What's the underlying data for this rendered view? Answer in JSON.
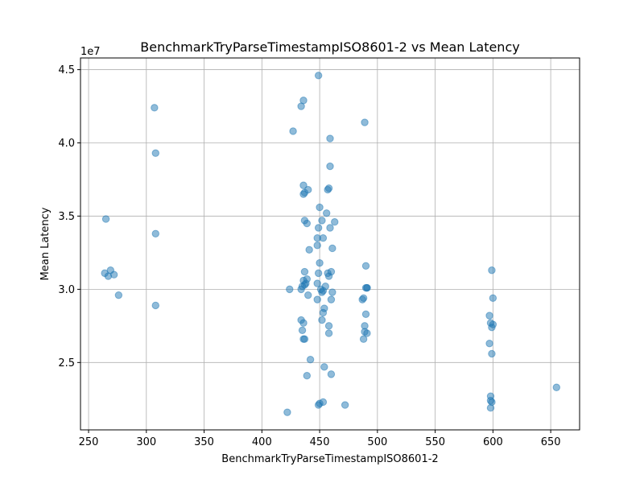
{
  "chart_data": {
    "type": "scatter",
    "title": "BenchmarkTryParseTimestampISO8601-2 vs Mean Latency",
    "xlabel": "BenchmarkTryParseTimestampISO8601-2",
    "ylabel": "Mean Latency",
    "y_offset_label": "1e7",
    "y_scale": 10000000,
    "grid": true,
    "xlim": [
      243,
      675
    ],
    "ylim": [
      20400000,
      45800000
    ],
    "x_ticks": [
      250,
      300,
      350,
      400,
      450,
      500,
      550,
      600,
      650
    ],
    "x_tick_labels": [
      "250",
      "300",
      "350",
      "400",
      "450",
      "500",
      "550",
      "600",
      "650"
    ],
    "y_ticks": [
      25000000,
      30000000,
      35000000,
      40000000,
      45000000
    ],
    "y_tick_labels": [
      "2.5",
      "3.0",
      "3.5",
      "4.0",
      "4.5"
    ],
    "points": [
      {
        "x": 264,
        "y": 31100000
      },
      {
        "x": 265,
        "y": 34800000
      },
      {
        "x": 267,
        "y": 30900000
      },
      {
        "x": 269,
        "y": 31300000
      },
      {
        "x": 272,
        "y": 31000000
      },
      {
        "x": 276,
        "y": 29600000
      },
      {
        "x": 307,
        "y": 42400000
      },
      {
        "x": 308,
        "y": 39300000
      },
      {
        "x": 308,
        "y": 33800000
      },
      {
        "x": 308,
        "y": 28900000
      },
      {
        "x": 422,
        "y": 21600000
      },
      {
        "x": 424,
        "y": 30000000
      },
      {
        "x": 427,
        "y": 40800000
      },
      {
        "x": 434,
        "y": 42500000
      },
      {
        "x": 434,
        "y": 27900000
      },
      {
        "x": 434,
        "y": 30000000
      },
      {
        "x": 435,
        "y": 27200000
      },
      {
        "x": 435,
        "y": 30200000
      },
      {
        "x": 436,
        "y": 42900000
      },
      {
        "x": 436,
        "y": 37100000
      },
      {
        "x": 436,
        "y": 36500000
      },
      {
        "x": 436,
        "y": 30600000
      },
      {
        "x": 436,
        "y": 27700000
      },
      {
        "x": 436,
        "y": 26600000
      },
      {
        "x": 437,
        "y": 26600000
      },
      {
        "x": 437,
        "y": 36600000
      },
      {
        "x": 437,
        "y": 34700000
      },
      {
        "x": 437,
        "y": 31200000
      },
      {
        "x": 437,
        "y": 30300000
      },
      {
        "x": 438,
        "y": 30400000
      },
      {
        "x": 439,
        "y": 34500000
      },
      {
        "x": 439,
        "y": 30700000
      },
      {
        "x": 439,
        "y": 24100000
      },
      {
        "x": 440,
        "y": 36800000
      },
      {
        "x": 440,
        "y": 29600000
      },
      {
        "x": 441,
        "y": 32700000
      },
      {
        "x": 442,
        "y": 25200000
      },
      {
        "x": 448,
        "y": 29300000
      },
      {
        "x": 448,
        "y": 33500000
      },
      {
        "x": 448,
        "y": 33000000
      },
      {
        "x": 448,
        "y": 30400000
      },
      {
        "x": 449,
        "y": 44600000
      },
      {
        "x": 449,
        "y": 34200000
      },
      {
        "x": 449,
        "y": 31100000
      },
      {
        "x": 449,
        "y": 22100000
      },
      {
        "x": 450,
        "y": 35600000
      },
      {
        "x": 450,
        "y": 22200000
      },
      {
        "x": 450,
        "y": 31800000
      },
      {
        "x": 451,
        "y": 30000000
      },
      {
        "x": 452,
        "y": 34700000
      },
      {
        "x": 452,
        "y": 29800000
      },
      {
        "x": 452,
        "y": 27900000
      },
      {
        "x": 453,
        "y": 33500000
      },
      {
        "x": 453,
        "y": 29900000
      },
      {
        "x": 453,
        "y": 28400000
      },
      {
        "x": 453,
        "y": 22300000
      },
      {
        "x": 454,
        "y": 24700000
      },
      {
        "x": 454,
        "y": 28700000
      },
      {
        "x": 455,
        "y": 30200000
      },
      {
        "x": 456,
        "y": 35200000
      },
      {
        "x": 457,
        "y": 36800000
      },
      {
        "x": 457,
        "y": 31100000
      },
      {
        "x": 458,
        "y": 36900000
      },
      {
        "x": 458,
        "y": 30900000
      },
      {
        "x": 458,
        "y": 27500000
      },
      {
        "x": 458,
        "y": 27000000
      },
      {
        "x": 459,
        "y": 40300000
      },
      {
        "x": 459,
        "y": 34200000
      },
      {
        "x": 459,
        "y": 38400000
      },
      {
        "x": 460,
        "y": 31200000
      },
      {
        "x": 460,
        "y": 24200000
      },
      {
        "x": 460,
        "y": 29300000
      },
      {
        "x": 461,
        "y": 29800000
      },
      {
        "x": 461,
        "y": 32800000
      },
      {
        "x": 463,
        "y": 34600000
      },
      {
        "x": 472,
        "y": 22100000
      },
      {
        "x": 487,
        "y": 29300000
      },
      {
        "x": 488,
        "y": 29400000
      },
      {
        "x": 488,
        "y": 26600000
      },
      {
        "x": 489,
        "y": 41400000
      },
      {
        "x": 489,
        "y": 27500000
      },
      {
        "x": 489,
        "y": 27100000
      },
      {
        "x": 490,
        "y": 31600000
      },
      {
        "x": 490,
        "y": 30100000
      },
      {
        "x": 490,
        "y": 28300000
      },
      {
        "x": 491,
        "y": 30100000
      },
      {
        "x": 491,
        "y": 30100000
      },
      {
        "x": 491,
        "y": 27000000
      },
      {
        "x": 597,
        "y": 28200000
      },
      {
        "x": 597,
        "y": 26300000
      },
      {
        "x": 598,
        "y": 27700000
      },
      {
        "x": 598,
        "y": 22700000
      },
      {
        "x": 598,
        "y": 22400000
      },
      {
        "x": 598,
        "y": 21900000
      },
      {
        "x": 599,
        "y": 31300000
      },
      {
        "x": 599,
        "y": 27400000
      },
      {
        "x": 599,
        "y": 25600000
      },
      {
        "x": 599,
        "y": 22300000
      },
      {
        "x": 600,
        "y": 29400000
      },
      {
        "x": 600,
        "y": 27600000
      },
      {
        "x": 655,
        "y": 23300000
      }
    ]
  }
}
